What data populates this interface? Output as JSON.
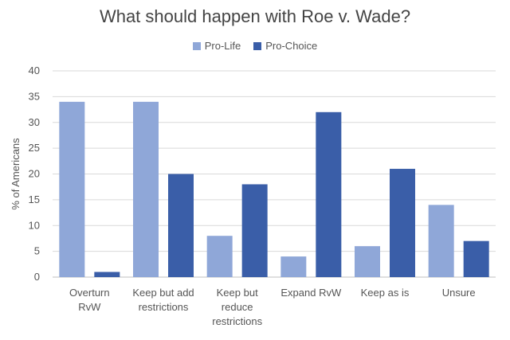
{
  "chart_data": {
    "type": "bar",
    "title": "What should happen with Roe v. Wade?",
    "ylabel": "% of Americans",
    "xlabel": "",
    "ylim": [
      0,
      40
    ],
    "yticks": [
      0,
      5,
      10,
      15,
      20,
      25,
      30,
      35,
      40
    ],
    "grid": true,
    "legend_position": "top",
    "categories": [
      [
        "Overturn",
        "RvW"
      ],
      [
        "Keep but add",
        "restrictions"
      ],
      [
        "Keep but",
        "reduce",
        "restrictions"
      ],
      [
        "Expand RvW"
      ],
      [
        "Keep as is"
      ],
      [
        "Unsure"
      ]
    ],
    "series": [
      {
        "name": "Pro-Life",
        "color": "#8fa7d8",
        "values": [
          34,
          34,
          8,
          4,
          6,
          14
        ]
      },
      {
        "name": "Pro-Choice",
        "color": "#3a5ea8",
        "values": [
          1,
          20,
          18,
          32,
          21,
          7
        ]
      }
    ]
  }
}
